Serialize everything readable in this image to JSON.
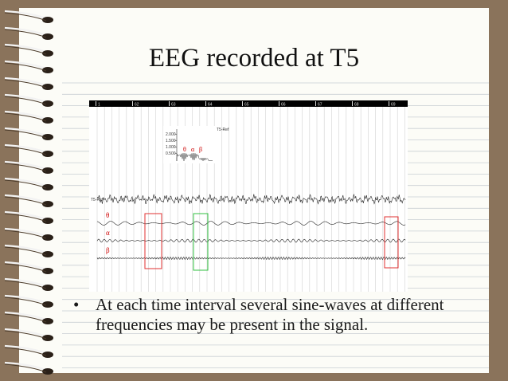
{
  "title": "EEG recorded at T5",
  "eeg": {
    "time_labels": [
      "1",
      "62",
      "63",
      "64",
      "65",
      "66",
      "67",
      "68",
      "69"
    ],
    "spectrum": {
      "y_labels": [
        "2.000",
        "1.500",
        "1.000",
        "0.500"
      ],
      "channel": "T5-Ref",
      "band_labels": [
        "θ",
        "α",
        "β"
      ]
    },
    "traces": [
      {
        "label": "T5-Ref"
      },
      {
        "label": "θ"
      },
      {
        "label": "α"
      },
      {
        "label": "β"
      }
    ]
  },
  "bullets": [
    "At each time interval several sine-waves at different frequencies may be present in the signal."
  ]
}
